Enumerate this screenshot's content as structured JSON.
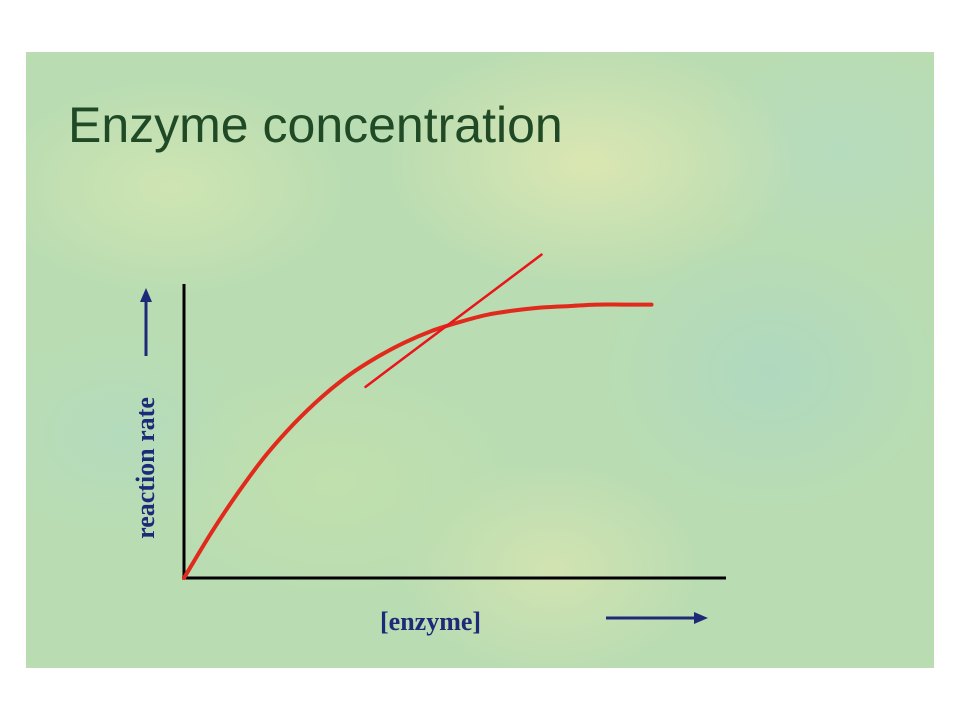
{
  "slide": {
    "title": "Enzyme concentration"
  },
  "colors": {
    "title": "#204a26",
    "axis": "#000000",
    "curve": "#e02a1c",
    "tangent": "#e8151a",
    "label": "#1e2a78",
    "background": "#b9dcb2"
  },
  "chart_data": {
    "type": "line",
    "title": "",
    "xlabel": "[enzyme]",
    "ylabel": "reaction rate",
    "xlim": [
      0,
      100
    ],
    "ylim": [
      0,
      100
    ],
    "grid": false,
    "legend": "none",
    "axis_arrows": true,
    "series": [
      {
        "x": [
          0,
          5,
          10,
          15,
          20,
          25,
          30,
          35,
          40,
          45,
          50,
          55,
          60,
          65,
          70,
          75,
          80,
          85
        ],
        "values": [
          0,
          15.5,
          29.5,
          42,
          52.5,
          61.5,
          69,
          75,
          80,
          84,
          87,
          89.5,
          91,
          92,
          92.5,
          93,
          93,
          93
        ]
      },
      {
        "x": [
          33,
          65
        ],
        "values": [
          65,
          110
        ]
      }
    ]
  }
}
